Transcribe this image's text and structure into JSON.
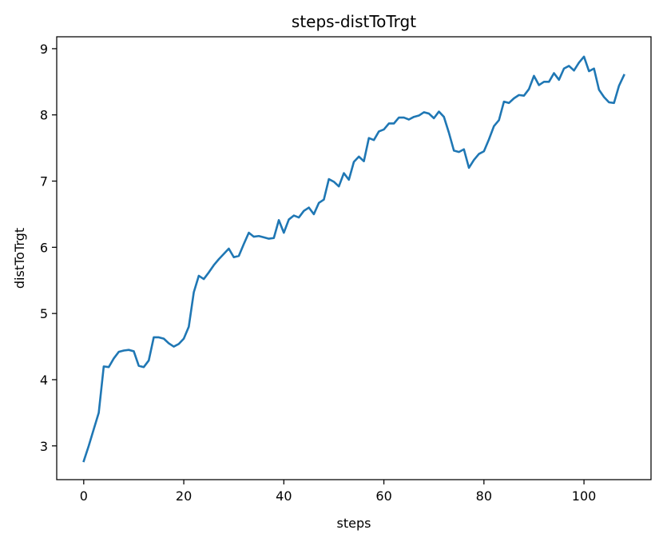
{
  "chart_data": {
    "type": "line",
    "title": "steps-distToTrgt",
    "xlabel": "steps",
    "ylabel": "distToTrgt",
    "xlim": [
      -5.4,
      113.4
    ],
    "ylim": [
      2.49,
      9.18
    ],
    "xticks": [
      0,
      20,
      40,
      60,
      80,
      100
    ],
    "yticks": [
      3,
      4,
      5,
      6,
      7,
      8,
      9
    ],
    "xtick_labels": [
      "0",
      "20",
      "40",
      "60",
      "80",
      "100"
    ],
    "ytick_labels": [
      "3",
      "4",
      "5",
      "6",
      "7",
      "8",
      "9"
    ],
    "grid": false,
    "series": [
      {
        "color": "#1f77b4",
        "x": [
          0,
          1,
          2,
          3,
          4,
          5,
          6,
          7,
          8,
          9,
          10,
          11,
          12,
          13,
          14,
          15,
          16,
          17,
          18,
          19,
          20,
          21,
          22,
          23,
          24,
          25,
          26,
          27,
          28,
          29,
          30,
          31,
          32,
          33,
          34,
          35,
          36,
          37,
          38,
          39,
          40,
          41,
          42,
          43,
          44,
          45,
          46,
          47,
          48,
          49,
          50,
          51,
          52,
          53,
          54,
          55,
          56,
          57,
          58,
          59,
          60,
          61,
          62,
          63,
          64,
          65,
          66,
          67,
          68,
          69,
          70,
          71,
          72,
          73,
          74,
          75,
          76,
          77,
          78,
          79,
          80,
          81,
          82,
          83,
          84,
          85,
          86,
          87,
          88,
          89,
          90,
          91,
          92,
          93,
          94,
          95,
          96,
          97,
          98,
          99,
          100,
          101,
          102,
          103,
          104,
          105,
          106,
          107,
          108
        ],
        "y": [
          2.77,
          3.0,
          3.25,
          3.5,
          4.2,
          4.19,
          4.32,
          4.42,
          4.44,
          4.45,
          4.43,
          4.21,
          4.19,
          4.29,
          4.64,
          4.64,
          4.62,
          4.55,
          4.5,
          4.54,
          4.62,
          4.8,
          5.32,
          5.57,
          5.52,
          5.62,
          5.73,
          5.82,
          5.9,
          5.98,
          5.85,
          5.87,
          6.05,
          6.22,
          6.16,
          6.17,
          6.15,
          6.13,
          6.14,
          6.41,
          6.22,
          6.42,
          6.48,
          6.45,
          6.55,
          6.6,
          6.5,
          6.67,
          6.72,
          7.03,
          6.99,
          6.92,
          7.12,
          7.02,
          7.29,
          7.37,
          7.3,
          7.65,
          7.62,
          7.75,
          7.78,
          7.87,
          7.87,
          7.96,
          7.96,
          7.93,
          7.97,
          7.99,
          8.04,
          8.02,
          7.95,
          8.05,
          7.97,
          7.73,
          7.46,
          7.44,
          7.48,
          7.2,
          7.32,
          7.41,
          7.45,
          7.63,
          7.83,
          7.92,
          8.2,
          8.18,
          8.25,
          8.3,
          8.29,
          8.39,
          8.59,
          8.45,
          8.5,
          8.5,
          8.63,
          8.53,
          8.7,
          8.74,
          8.67,
          8.79,
          8.88,
          8.66,
          8.7,
          8.38,
          8.27,
          8.19,
          8.18,
          8.44,
          8.6
        ]
      }
    ]
  }
}
